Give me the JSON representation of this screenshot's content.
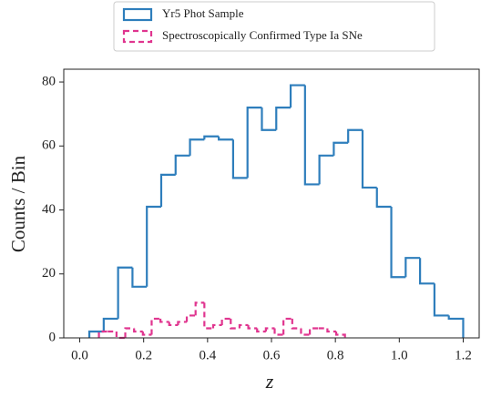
{
  "chart_data": {
    "type": "histogram",
    "xlabel": "z",
    "ylabel": "Counts / Bin",
    "xlim": [
      -0.05,
      1.25
    ],
    "ylim": [
      0,
      84
    ],
    "xticks": [
      {
        "value": 0,
        "label": "0.0"
      },
      0.2,
      0.4,
      0.6,
      0.8,
      {
        "value": 1,
        "label": "1.0"
      },
      1.2
    ],
    "yticks": [
      0,
      20,
      40,
      60,
      80
    ],
    "grid": false,
    "legend": "upper center",
    "series": [
      {
        "name": "Yr5 Phot Sample",
        "color": "#2e7ebc",
        "linestyle": "solid",
        "bins": [
          0.03,
          0.075,
          0.12,
          0.165,
          0.21,
          0.255,
          0.3,
          0.345,
          0.39,
          0.435,
          0.48,
          0.525,
          0.57,
          0.615,
          0.66,
          0.705,
          0.75,
          0.795,
          0.84,
          0.885,
          0.93,
          0.975,
          1.02,
          1.065,
          1.11,
          1.155,
          1.2
        ],
        "values": [
          2,
          6,
          22,
          16,
          41,
          51,
          57,
          62,
          63,
          62,
          50,
          72,
          65,
          72,
          79,
          48,
          57,
          61,
          65,
          47,
          41,
          19,
          25,
          17,
          7,
          6
        ]
      },
      {
        "name": "Spectroscopically Confirmed Type Ia SNe",
        "color": "#e0358f",
        "linestyle": "dashed",
        "bins": [
          0.06,
          0.0875,
          0.115,
          0.1425,
          0.17,
          0.1975,
          0.225,
          0.2525,
          0.28,
          0.3075,
          0.335,
          0.3625,
          0.39,
          0.4175,
          0.445,
          0.4725,
          0.5,
          0.5275,
          0.555,
          0.5825,
          0.61,
          0.6375,
          0.665,
          0.6925,
          0.72,
          0.7475,
          0.775,
          0.8025,
          0.83
        ],
        "values": [
          2,
          2,
          0,
          3,
          2,
          1,
          6,
          5,
          4,
          5,
          7,
          11,
          3,
          4,
          6,
          3,
          4,
          3,
          2,
          3,
          1,
          6,
          3,
          1,
          3,
          3,
          2,
          1
        ]
      }
    ]
  }
}
